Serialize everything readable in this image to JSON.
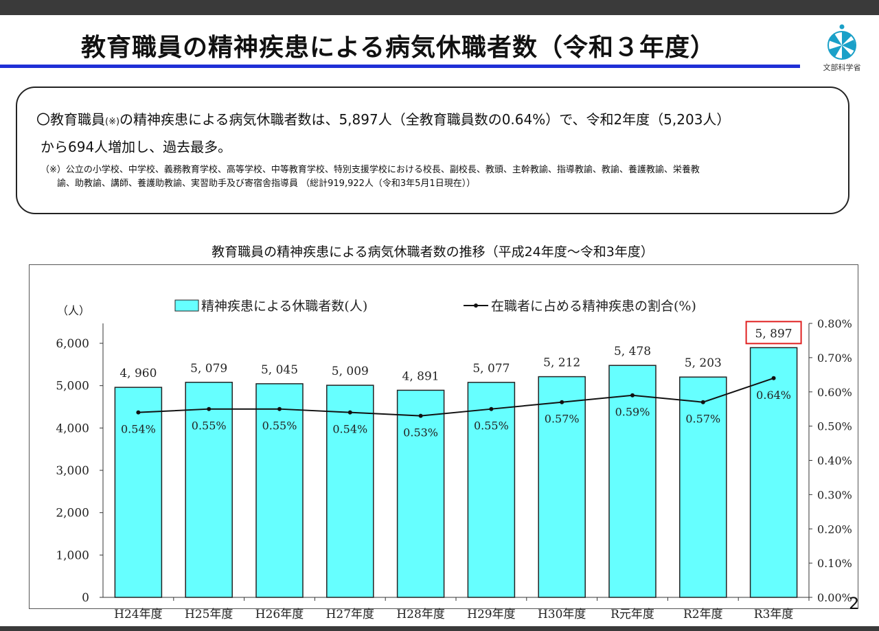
{
  "header": {
    "title": "教育職員の精神疾患による病気休職者数（令和３年度）",
    "logo_text": "文部科学省"
  },
  "summary": {
    "line1_a": "〇教育職員",
    "line1_mark": "(※)",
    "line1_b": "の精神疾患による病気休職者数は、5,897人（全教育職員数の0.64%）で、令和2年度（5,203人）",
    "line2": "から694人増加し、過去最多。",
    "note1": "（※）公立の小学校、中学校、義務教育学校、高等学校、中等教育学校、特別支援学校における校長、副校長、教頭、主幹教諭、指導教諭、教諭、養護教諭、栄養教",
    "note2": "諭、助教諭、講師、養護助教諭、実習助手及び寄宿舎指導員 （総計919,922人（令和3年5月1日現在））"
  },
  "chart_title": "教育職員の精神疾患による病気休職者数の推移（平成24年度～令和3年度）",
  "page_number": "2",
  "colors": {
    "bar": "#66ffff",
    "line": "#111111",
    "highlight": "#e02020",
    "rule": "#1f2fd6"
  },
  "chart_data": {
    "type": "bar",
    "categories": [
      "H24年度",
      "H25年度",
      "H26年度",
      "H27年度",
      "H28年度",
      "H29年度",
      "H30年度",
      "R元年度",
      "R2年度",
      "R3年度"
    ],
    "series": [
      {
        "name": "精神疾患による休職者数(人)",
        "type": "bar",
        "axis": "left",
        "values": [
          4960,
          5079,
          5045,
          5009,
          4891,
          5077,
          5212,
          5478,
          5203,
          5897
        ],
        "labels": [
          "4, 960",
          "5, 079",
          "5, 045",
          "5, 009",
          "4, 891",
          "5, 077",
          "5, 212",
          "5, 478",
          "5, 203",
          "5, 897"
        ]
      },
      {
        "name": "在職者に占める精神疾患の割合(%)",
        "type": "line",
        "axis": "right",
        "values": [
          0.54,
          0.55,
          0.55,
          0.54,
          0.53,
          0.55,
          0.57,
          0.59,
          0.57,
          0.64
        ],
        "labels": [
          "0.54%",
          "0.55%",
          "0.55%",
          "0.54%",
          "0.53%",
          "0.55%",
          "0.57%",
          "0.59%",
          "0.57%",
          "0.64%"
        ]
      }
    ],
    "y_left": {
      "unit": "（人）",
      "ylim": [
        0,
        6500
      ],
      "ticks": [
        0,
        1000,
        2000,
        3000,
        4000,
        5000,
        6000
      ],
      "tick_labels": [
        "0",
        "1,000",
        "2,000",
        "3,000",
        "4,000",
        "5,000",
        "6,000"
      ]
    },
    "y_right": {
      "ylim": [
        0,
        0.8
      ],
      "ticks": [
        0,
        0.1,
        0.2,
        0.3,
        0.4,
        0.5,
        0.6,
        0.7,
        0.8
      ],
      "tick_labels": [
        "0.00%",
        "0.10%",
        "0.20%",
        "0.30%",
        "0.40%",
        "0.50%",
        "0.60%",
        "0.70%",
        "0.80%"
      ]
    },
    "highlight_index": 9,
    "grid": false,
    "legend": "top"
  }
}
